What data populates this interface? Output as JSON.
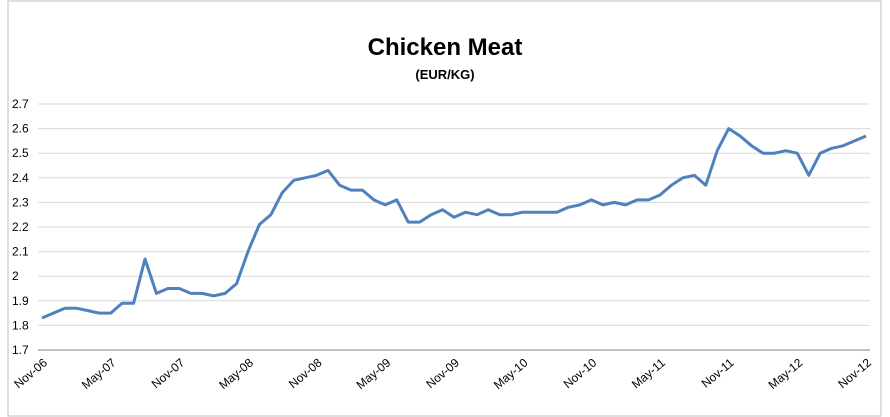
{
  "chart_data": {
    "type": "line",
    "title": "Chicken Meat",
    "subtitle": "(EUR/KG)",
    "categories": [
      "Nov-06",
      null,
      null,
      null,
      null,
      null,
      "May-07",
      null,
      null,
      null,
      null,
      null,
      "Nov-07",
      null,
      null,
      null,
      null,
      null,
      "May-08",
      null,
      null,
      null,
      null,
      null,
      "Nov-08",
      null,
      null,
      null,
      null,
      null,
      "May-09",
      null,
      null,
      null,
      null,
      null,
      "Nov-09",
      null,
      null,
      null,
      null,
      null,
      "May-10",
      null,
      null,
      null,
      null,
      null,
      "Nov-10",
      null,
      null,
      null,
      null,
      null,
      "May-11",
      null,
      null,
      null,
      null,
      null,
      "Nov-11",
      null,
      null,
      null,
      null,
      null,
      "May-12",
      null,
      null,
      null,
      null,
      null,
      "Nov-12"
    ],
    "series": [
      {
        "name": "Chicken Meat",
        "color": "#4f81bd",
        "values": [
          1.83,
          1.85,
          1.87,
          1.87,
          1.86,
          1.85,
          1.85,
          1.89,
          1.89,
          2.07,
          1.93,
          1.95,
          1.95,
          1.93,
          1.93,
          1.92,
          1.93,
          1.97,
          2.1,
          2.21,
          2.25,
          2.34,
          2.39,
          2.4,
          2.41,
          2.43,
          2.37,
          2.35,
          2.35,
          2.31,
          2.29,
          2.31,
          2.22,
          2.22,
          2.25,
          2.27,
          2.24,
          2.26,
          2.25,
          2.27,
          2.25,
          2.25,
          2.26,
          2.26,
          2.26,
          2.26,
          2.28,
          2.29,
          2.31,
          2.29,
          2.3,
          2.29,
          2.31,
          2.31,
          2.33,
          2.37,
          2.4,
          2.41,
          2.37,
          2.51,
          2.6,
          2.57,
          2.53,
          2.5,
          2.5,
          2.51,
          2.5,
          2.41,
          2.5,
          2.52,
          2.53,
          2.55,
          2.57
        ]
      }
    ],
    "ylim": [
      1.7,
      2.7
    ],
    "yticks": [
      1.7,
      1.8,
      1.9,
      2,
      2.1,
      2.2,
      2.3,
      2.4,
      2.5,
      2.6,
      2.7
    ],
    "grid": true
  }
}
